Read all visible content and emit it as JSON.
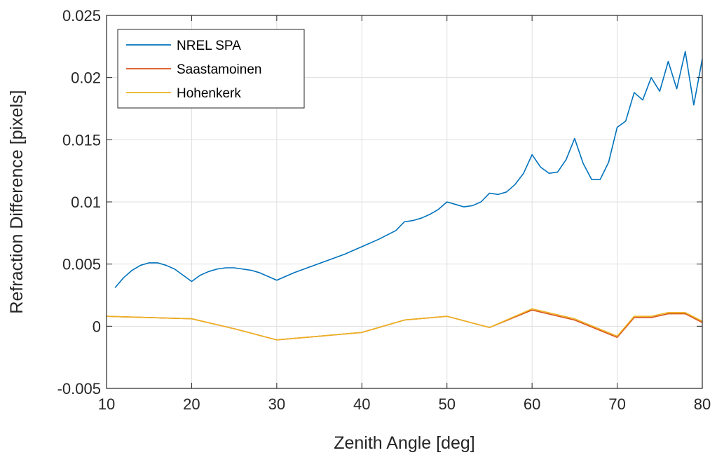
{
  "chart_data": {
    "type": "line",
    "title": "",
    "xlabel": "Zenith Angle [deg]",
    "ylabel": "Refraction Difference [pixels]",
    "xlim": [
      10,
      80
    ],
    "ylim": [
      -0.005,
      0.025
    ],
    "x_ticks": [
      "10",
      "20",
      "30",
      "40",
      "50",
      "60",
      "70",
      "80"
    ],
    "y_ticks": [
      "-0.005",
      "0",
      "0.005",
      "0.01",
      "0.015",
      "0.02",
      "0.025"
    ],
    "grid": true,
    "legend_position": "top-left",
    "series": [
      {
        "name": "NREL SPA",
        "color": "#0072BD",
        "x": [
          11,
          12,
          13,
          14,
          15,
          16,
          17,
          18,
          19,
          20,
          21,
          22,
          23,
          24,
          25,
          26,
          27,
          28,
          29,
          30,
          32,
          34,
          36,
          38,
          40,
          42,
          44,
          45,
          46,
          47,
          48,
          49,
          50,
          51,
          52,
          53,
          54,
          55,
          56,
          57,
          58,
          59,
          60,
          61,
          62,
          63,
          64,
          65,
          66,
          67,
          68,
          69,
          70,
          71,
          72,
          73,
          74,
          75,
          76,
          77,
          78,
          79,
          80
        ],
        "y": [
          0.0031,
          0.0039,
          0.0045,
          0.0049,
          0.0051,
          0.0051,
          0.0049,
          0.0046,
          0.0041,
          0.0036,
          0.0041,
          0.0044,
          0.0046,
          0.0047,
          0.0047,
          0.0046,
          0.0045,
          0.0043,
          0.004,
          0.0037,
          0.0043,
          0.0048,
          0.0053,
          0.0058,
          0.0064,
          0.007,
          0.0077,
          0.0084,
          0.0085,
          0.0087,
          0.009,
          0.0094,
          0.01,
          0.0098,
          0.0096,
          0.0097,
          0.01,
          0.0107,
          0.0106,
          0.0108,
          0.0114,
          0.0123,
          0.0138,
          0.0128,
          0.0123,
          0.0124,
          0.0134,
          0.0151,
          0.0131,
          0.0118,
          0.0118,
          0.0132,
          0.016,
          0.0165,
          0.0188,
          0.0182,
          0.02,
          0.0189,
          0.0213,
          0.0191,
          0.0221,
          0.0178,
          0.0215
        ]
      },
      {
        "name": "Saastamoinen",
        "color": "#D95319",
        "x": [
          10,
          15,
          20,
          25,
          30,
          35,
          40,
          45,
          50,
          55,
          60,
          65,
          70,
          72,
          74,
          76,
          78,
          80
        ],
        "y": [
          0.0008,
          0.0007,
          0.0006,
          -0.0002,
          -0.0011,
          -0.0008,
          -0.0005,
          0.0005,
          0.0008,
          -0.0001,
          0.0013,
          0.0005,
          -0.0009,
          0.0007,
          0.0007,
          0.001,
          0.001,
          0.0003
        ]
      },
      {
        "name": "Hohenkerk",
        "color": "#EDB120",
        "x": [
          10,
          15,
          20,
          25,
          30,
          35,
          40,
          45,
          50,
          55,
          60,
          65,
          70,
          72,
          74,
          76,
          78,
          80
        ],
        "y": [
          0.0008,
          0.0007,
          0.0006,
          -0.0002,
          -0.0011,
          -0.0008,
          -0.0005,
          0.0005,
          0.0008,
          -0.0001,
          0.0014,
          0.0006,
          -0.0008,
          0.0008,
          0.0008,
          0.0011,
          0.0011,
          0.0004
        ]
      }
    ]
  }
}
